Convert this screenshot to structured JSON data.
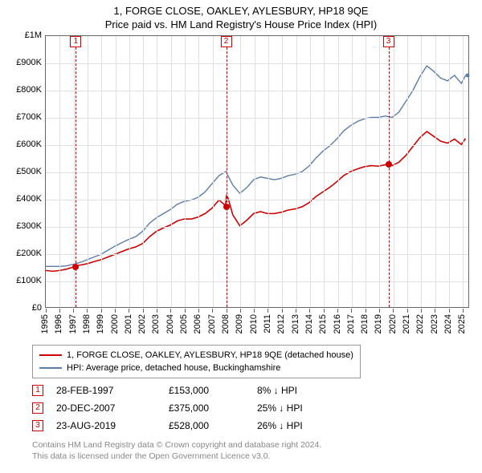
{
  "title_line1": "1, FORGE CLOSE, OAKLEY, AYLESBURY, HP18 9QE",
  "title_line2": "Price paid vs. HM Land Registry's House Price Index (HPI)",
  "chart": {
    "type": "line",
    "background_color": "#ffffff",
    "grid_color": "#e0e0e0",
    "border_color": "#666666",
    "y": {
      "min": 0,
      "max": 1000000,
      "step": 100000,
      "labels": [
        "£0",
        "£100K",
        "£200K",
        "£300K",
        "£400K",
        "£500K",
        "£600K",
        "£700K",
        "£800K",
        "£900K",
        "£1M"
      ]
    },
    "x": {
      "min": 1995,
      "max": 2025.5,
      "labels": [
        "1995",
        "1996",
        "1997",
        "1998",
        "1999",
        "2000",
        "2001",
        "2002",
        "2003",
        "2004",
        "2005",
        "2006",
        "2007",
        "2008",
        "2009",
        "2010",
        "2011",
        "2012",
        "2013",
        "2014",
        "2015",
        "2016",
        "2017",
        "2018",
        "2019",
        "2020",
        "2021",
        "2022",
        "2023",
        "2024",
        "2025"
      ]
    },
    "series": {
      "hpi": {
        "color": "#5B7CA8",
        "width": 1.4,
        "label": "HPI: Average price, detached house, Buckinghamshire",
        "points": [
          [
            1995.0,
            150000
          ],
          [
            1995.5,
            150000
          ],
          [
            1996.0,
            150000
          ],
          [
            1996.5,
            152000
          ],
          [
            1997.0,
            158000
          ],
          [
            1997.5,
            165000
          ],
          [
            1998.0,
            175000
          ],
          [
            1998.5,
            185000
          ],
          [
            1999.0,
            195000
          ],
          [
            1999.5,
            210000
          ],
          [
            2000.0,
            225000
          ],
          [
            2000.5,
            238000
          ],
          [
            2001.0,
            250000
          ],
          [
            2001.5,
            260000
          ],
          [
            2002.0,
            280000
          ],
          [
            2002.5,
            310000
          ],
          [
            2003.0,
            330000
          ],
          [
            2003.5,
            345000
          ],
          [
            2004.0,
            360000
          ],
          [
            2004.5,
            380000
          ],
          [
            2005.0,
            390000
          ],
          [
            2005.5,
            395000
          ],
          [
            2006.0,
            405000
          ],
          [
            2006.5,
            425000
          ],
          [
            2007.0,
            455000
          ],
          [
            2007.5,
            485000
          ],
          [
            2008.0,
            500000
          ],
          [
            2008.2,
            480000
          ],
          [
            2008.5,
            450000
          ],
          [
            2009.0,
            420000
          ],
          [
            2009.5,
            440000
          ],
          [
            2010.0,
            470000
          ],
          [
            2010.5,
            480000
          ],
          [
            2011.0,
            475000
          ],
          [
            2011.5,
            470000
          ],
          [
            2012.0,
            475000
          ],
          [
            2012.5,
            485000
          ],
          [
            2013.0,
            490000
          ],
          [
            2013.5,
            500000
          ],
          [
            2014.0,
            520000
          ],
          [
            2014.5,
            550000
          ],
          [
            2015.0,
            575000
          ],
          [
            2015.5,
            595000
          ],
          [
            2016.0,
            620000
          ],
          [
            2016.5,
            650000
          ],
          [
            2017.0,
            670000
          ],
          [
            2017.5,
            685000
          ],
          [
            2018.0,
            695000
          ],
          [
            2018.5,
            700000
          ],
          [
            2019.0,
            700000
          ],
          [
            2019.5,
            705000
          ],
          [
            2020.0,
            700000
          ],
          [
            2020.5,
            720000
          ],
          [
            2021.0,
            760000
          ],
          [
            2021.5,
            800000
          ],
          [
            2022.0,
            850000
          ],
          [
            2022.5,
            890000
          ],
          [
            2023.0,
            870000
          ],
          [
            2023.5,
            845000
          ],
          [
            2024.0,
            835000
          ],
          [
            2024.5,
            855000
          ],
          [
            2025.0,
            825000
          ],
          [
            2025.3,
            855000
          ]
        ]
      },
      "sale": {
        "color": "#CC0000",
        "width": 1.6,
        "label": "1, FORGE CLOSE, OAKLEY, AYLESBURY, HP18 9QE (detached house)",
        "points": [
          [
            1995.0,
            135000
          ],
          [
            1995.5,
            132000
          ],
          [
            1996.0,
            135000
          ],
          [
            1996.5,
            140000
          ],
          [
            1997.0,
            148000
          ],
          [
            1997.16,
            153000
          ],
          [
            1997.5,
            155000
          ],
          [
            1998.0,
            160000
          ],
          [
            1998.5,
            168000
          ],
          [
            1999.0,
            175000
          ],
          [
            1999.5,
            185000
          ],
          [
            2000.0,
            195000
          ],
          [
            2000.5,
            205000
          ],
          [
            2001.0,
            215000
          ],
          [
            2001.5,
            222000
          ],
          [
            2002.0,
            235000
          ],
          [
            2002.5,
            260000
          ],
          [
            2003.0,
            280000
          ],
          [
            2003.5,
            292000
          ],
          [
            2004.0,
            303000
          ],
          [
            2004.5,
            318000
          ],
          [
            2005.0,
            325000
          ],
          [
            2005.5,
            325000
          ],
          [
            2006.0,
            332000
          ],
          [
            2006.5,
            345000
          ],
          [
            2007.0,
            365000
          ],
          [
            2007.5,
            395000
          ],
          [
            2007.97,
            375000
          ],
          [
            2008.05,
            415000
          ],
          [
            2008.2,
            395000
          ],
          [
            2008.5,
            340000
          ],
          [
            2009.0,
            300000
          ],
          [
            2009.5,
            320000
          ],
          [
            2010.0,
            345000
          ],
          [
            2010.5,
            352000
          ],
          [
            2011.0,
            345000
          ],
          [
            2011.5,
            345000
          ],
          [
            2012.0,
            350000
          ],
          [
            2012.5,
            358000
          ],
          [
            2013.0,
            362000
          ],
          [
            2013.5,
            370000
          ],
          [
            2014.0,
            385000
          ],
          [
            2014.5,
            408000
          ],
          [
            2015.0,
            425000
          ],
          [
            2015.5,
            442000
          ],
          [
            2016.0,
            462000
          ],
          [
            2016.5,
            485000
          ],
          [
            2017.0,
            500000
          ],
          [
            2017.5,
            510000
          ],
          [
            2018.0,
            518000
          ],
          [
            2018.5,
            522000
          ],
          [
            2019.0,
            520000
          ],
          [
            2019.5,
            525000
          ],
          [
            2019.64,
            528000
          ],
          [
            2020.0,
            522000
          ],
          [
            2020.5,
            535000
          ],
          [
            2021.0,
            560000
          ],
          [
            2021.5,
            593000
          ],
          [
            2022.0,
            625000
          ],
          [
            2022.5,
            648000
          ],
          [
            2023.0,
            630000
          ],
          [
            2023.5,
            612000
          ],
          [
            2024.0,
            605000
          ],
          [
            2024.5,
            620000
          ],
          [
            2025.0,
            600000
          ],
          [
            2025.3,
            622000
          ]
        ]
      }
    },
    "markers": [
      {
        "n": "1",
        "year": 1997.16,
        "value": 153000
      },
      {
        "n": "2",
        "year": 2007.97,
        "value": 375000
      },
      {
        "n": "3",
        "year": 2019.64,
        "value": 528000
      }
    ],
    "hpi_end_dot": [
      2025.3,
      855000
    ],
    "marker_color": "#CC0000",
    "sale_dot_color": "#CC0000",
    "hpi_dot_color": "#5B7CA8"
  },
  "legend": {
    "items": [
      {
        "color": "#CC0000",
        "label": "1, FORGE CLOSE, OAKLEY, AYLESBURY, HP18 9QE (detached house)"
      },
      {
        "color": "#5B7CA8",
        "label": "HPI: Average price, detached house, Buckinghamshire"
      }
    ]
  },
  "sales": [
    {
      "n": "1",
      "date": "28-FEB-1997",
      "price": "£153,000",
      "diff": "8% ↓ HPI"
    },
    {
      "n": "2",
      "date": "20-DEC-2007",
      "price": "£375,000",
      "diff": "25% ↓ HPI"
    },
    {
      "n": "3",
      "date": "23-AUG-2019",
      "price": "£528,000",
      "diff": "26% ↓ HPI"
    }
  ],
  "footer_line1": "Contains HM Land Registry data © Crown copyright and database right 2024.",
  "footer_line2": "This data is licensed under the Open Government Licence v3.0."
}
